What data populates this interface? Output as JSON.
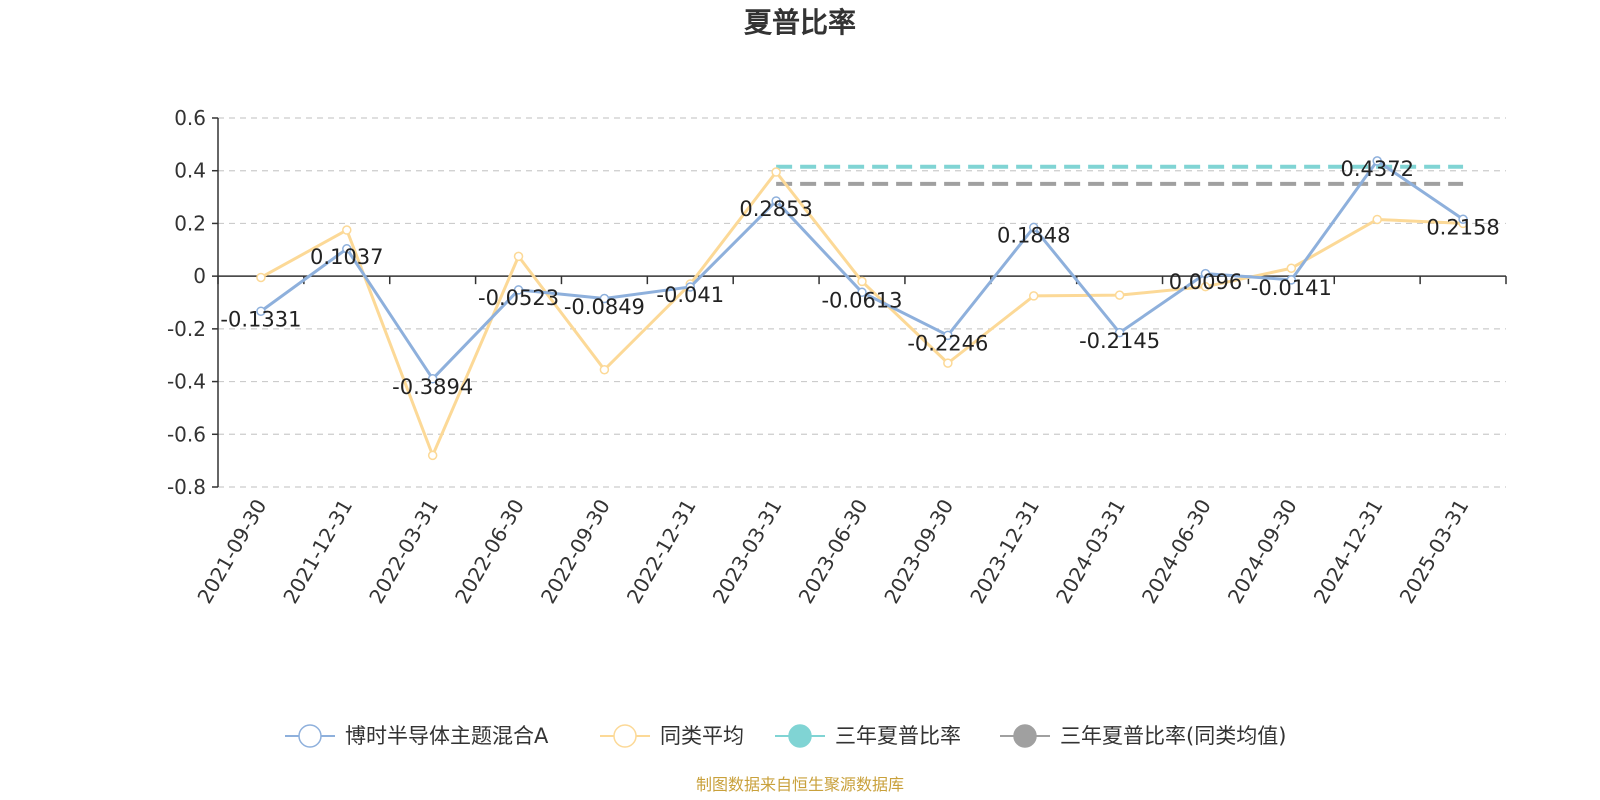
{
  "chart_data": {
    "type": "line",
    "title": "夏普比率",
    "categories": [
      "2021-09-30",
      "2021-12-31",
      "2022-03-31",
      "2022-06-30",
      "2022-09-30",
      "2022-12-31",
      "2023-03-31",
      "2023-06-30",
      "2023-09-30",
      "2023-12-31",
      "2024-03-31",
      "2024-06-30",
      "2024-09-30",
      "2024-12-31",
      "2025-03-31"
    ],
    "ylim": [
      -0.8,
      0.6
    ],
    "yticks": [
      "0.6",
      "0.4",
      "0.2",
      "0",
      "-0.2",
      "-0.4",
      "-0.6",
      "-0.8"
    ],
    "grid": true,
    "legend_position": "bottom",
    "series": [
      {
        "name": "博时半导体主题混合A",
        "color": "#8eb0dc",
        "values": [
          -0.1331,
          0.1037,
          -0.3894,
          -0.0523,
          -0.0849,
          -0.041,
          0.2853,
          -0.0613,
          -0.2246,
          0.1848,
          -0.2145,
          0.0096,
          -0.0141,
          0.4372,
          0.2158
        ],
        "labels": [
          "-0.1331",
          "0.1037",
          "-0.3894",
          "-0.0523",
          "-0.0849",
          "-0.041",
          "0.2853",
          "-0.0613",
          "-0.2246",
          "0.1848",
          "-0.2145",
          "0.0096",
          "-0.0141",
          "0.4372",
          "0.2158"
        ]
      },
      {
        "name": "同类平均",
        "color": "#fcd997",
        "values": [
          -0.005,
          0.175,
          -0.68,
          0.075,
          -0.355,
          -0.03,
          0.395,
          -0.02,
          -0.33,
          -0.075,
          -0.072,
          -0.04,
          0.03,
          0.215,
          0.2
        ]
      }
    ],
    "reference_lines": [
      {
        "name": "三年夏普比率",
        "color": "#80d4d4",
        "value": 0.415,
        "x_start": "2023-03-31",
        "x_end": "2025-03-31"
      },
      {
        "name": "三年夏普比率(同类均值)",
        "color": "#a0a0a0",
        "value": 0.35,
        "x_start": "2023-03-31",
        "x_end": "2025-03-31"
      }
    ],
    "source": "制图数据来自恒生聚源数据库"
  }
}
